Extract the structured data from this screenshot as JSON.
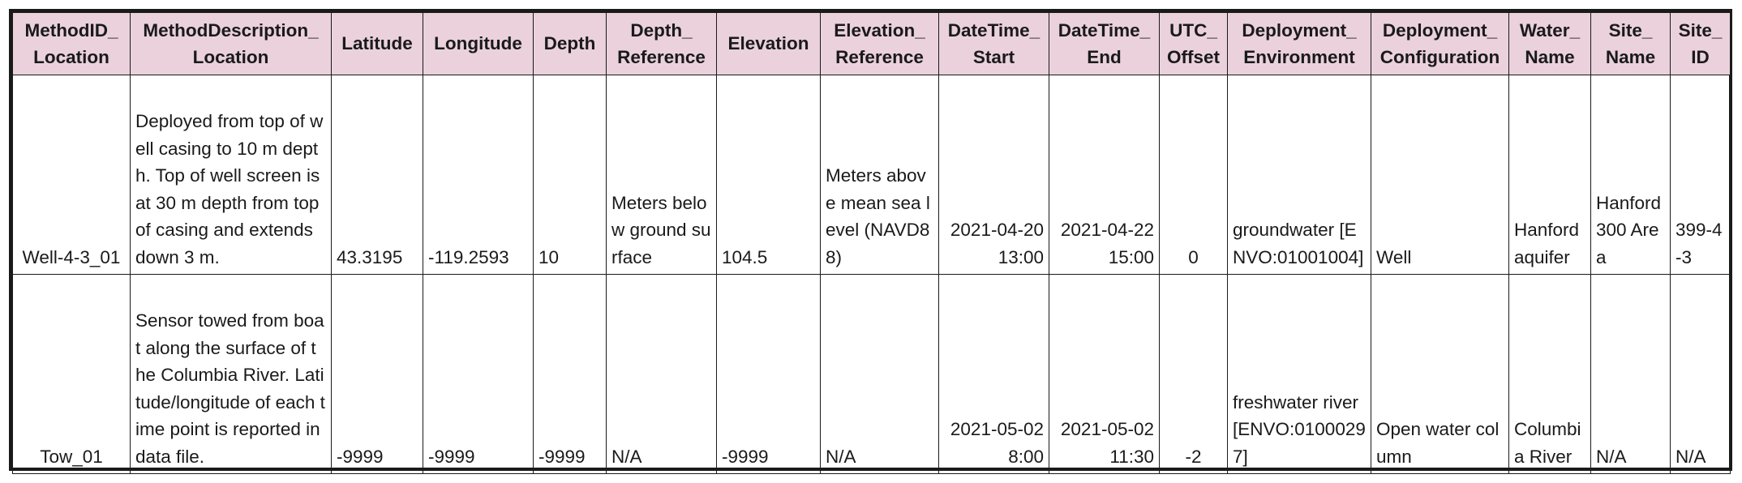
{
  "columns": [
    {
      "id": "methodid",
      "line1": "MethodID_",
      "line2": "Location"
    },
    {
      "id": "methoddesc",
      "line1": "MethodDescription_",
      "line2": "Location"
    },
    {
      "id": "latitude",
      "line1": "",
      "line2": "Latitude"
    },
    {
      "id": "longitude",
      "line1": "",
      "line2": "Longitude"
    },
    {
      "id": "depth",
      "line1": "",
      "line2": "Depth"
    },
    {
      "id": "depthref",
      "line1": "Depth_",
      "line2": "Reference"
    },
    {
      "id": "elevation",
      "line1": "",
      "line2": "Elevation"
    },
    {
      "id": "elevref",
      "line1": "Elevation_",
      "line2": "Reference"
    },
    {
      "id": "dtstart",
      "line1": "DateTime_",
      "line2": "Start"
    },
    {
      "id": "dtend",
      "line1": "DateTime_",
      "line2": "End"
    },
    {
      "id": "utc",
      "line1": "UTC_",
      "line2": "Offset"
    },
    {
      "id": "deployenv",
      "line1": "Deployment_",
      "line2": "Environment"
    },
    {
      "id": "deployconf",
      "line1": "Deployment_",
      "line2": "Configuration"
    },
    {
      "id": "water",
      "line1": "Water_",
      "line2": "Name"
    },
    {
      "id": "sitename",
      "line1": "Site_",
      "line2": "Name"
    },
    {
      "id": "siteid",
      "line1": "Site_",
      "line2": "ID"
    }
  ],
  "rows": [
    {
      "methodid": "Well-4-3_01",
      "methoddesc": "Deployed from top of well casing to 10 m depth. Top of well screen is at 30 m depth from top of casing and extends down 3 m.",
      "latitude": "43.3195",
      "longitude": "-119.2593",
      "depth": "10",
      "depthref": "Meters below ground surface",
      "elevation": "104.5",
      "elevref": "Meters above mean sea level (NAVD88)",
      "dtstart": "2021-04-20 13:00",
      "dtend": "2021-04-22 15:00",
      "utc": "0",
      "deployenv": "groundwater [ENVO:01001004]",
      "deployconf": "Well",
      "water": "Hanford aquifer",
      "sitename": "Hanford 300 Area",
      "siteid": "399-4-3"
    },
    {
      "methodid": "Tow_01",
      "methoddesc": "Sensor towed from boat along the surface of the Columbia River. Latitude/longitude of each time point is reported in data file.",
      "latitude": "-9999",
      "longitude": "-9999",
      "depth": "-9999",
      "depthref": "N/A",
      "elevation": "-9999",
      "elevref": "N/A",
      "dtstart": "2021-05-02 8:00",
      "dtend": "2021-05-02 11:30",
      "utc": "-2",
      "deployenv": "freshwater river [ENVO:01000297]",
      "deployconf": "Open water column",
      "water": "Columbia River",
      "sitename": "N/A",
      "siteid": "N/A"
    }
  ]
}
